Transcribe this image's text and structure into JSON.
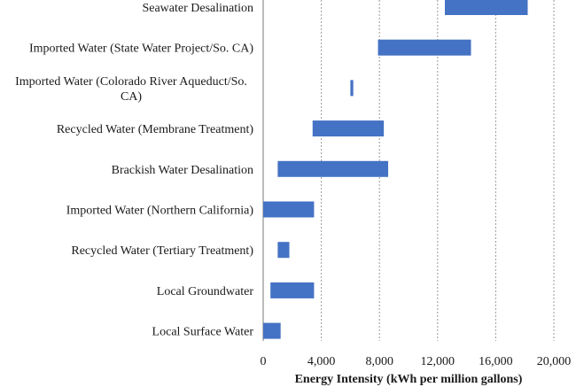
{
  "chart_data": {
    "type": "bar",
    "orientation": "horizontal-floating",
    "title": "",
    "xlabel": "Energy Intensity (kWh per million gallons)",
    "ylabel": "",
    "xlim": [
      0,
      20000
    ],
    "xticks": [
      0,
      4000,
      8000,
      12000,
      16000,
      20000
    ],
    "xtick_labels": [
      "0",
      "4,000",
      "8,000",
      "12,000",
      "16,000",
      "20,000"
    ],
    "grid": "vertical-dashed",
    "bar_color": "#4472c4",
    "categories": [
      {
        "label": [
          "Seawater Desalination"
        ],
        "min": 12500,
        "max": 18200
      },
      {
        "label": [
          "Imported Water (State Water Project/So. CA)"
        ],
        "min": 7900,
        "max": 14300
      },
      {
        "label": [
          "Imported Water (Colorado River Aqueduct/So.",
          "CA)"
        ],
        "min": 6000,
        "max": 6200
      },
      {
        "label": [
          "Recycled Water (Membrane Treatment)"
        ],
        "min": 3400,
        "max": 8300
      },
      {
        "label": [
          "Brackish Water Desalination"
        ],
        "min": 1000,
        "max": 8600
      },
      {
        "label": [
          "Imported Water (Northern California)"
        ],
        "min": 0,
        "max": 3500
      },
      {
        "label": [
          "Recycled Water (Tertiary Treatment)"
        ],
        "min": 1000,
        "max": 1800
      },
      {
        "label": [
          "Local Groundwater"
        ],
        "min": 500,
        "max": 3500
      },
      {
        "label": [
          "Local Surface Water"
        ],
        "min": 0,
        "max": 1200
      }
    ]
  }
}
